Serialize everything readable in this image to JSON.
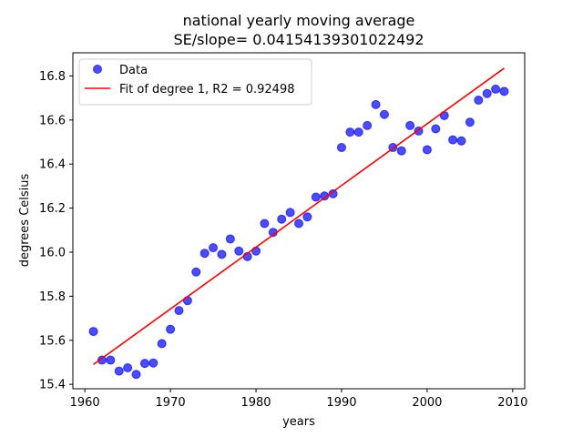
{
  "chart_data": {
    "type": "scatter",
    "title": "national yearly moving average",
    "subtitle": "SE/slope= 0.04154139301022492",
    "xlabel": "years",
    "ylabel": "degrees Celsius",
    "xlim": [
      1958.6,
      2011.4
    ],
    "ylim": [
      15.38,
      16.905
    ],
    "xticks": [
      1960,
      1970,
      1980,
      1990,
      2000,
      2010
    ],
    "yticks": [
      15.4,
      15.6,
      15.8,
      16.0,
      16.2,
      16.4,
      16.6,
      16.8
    ],
    "xtick_labels": [
      "1960",
      "1970",
      "1980",
      "1990",
      "2000",
      "2010"
    ],
    "ytick_labels": [
      "15.4",
      "15.6",
      "15.8",
      "16.0",
      "16.2",
      "16.4",
      "16.6",
      "16.8"
    ],
    "grid": false,
    "legend_position": "top-left",
    "series": [
      {
        "name": "Data",
        "kind": "scatter",
        "color": "#0000ff",
        "x": [
          1961,
          1962,
          1963,
          1964,
          1965,
          1966,
          1967,
          1968,
          1969,
          1970,
          1971,
          1972,
          1973,
          1974,
          1975,
          1976,
          1977,
          1978,
          1979,
          1980,
          1981,
          1982,
          1983,
          1984,
          1985,
          1986,
          1987,
          1988,
          1989,
          1990,
          1991,
          1992,
          1993,
          1994,
          1995,
          1996,
          1997,
          1998,
          1999,
          2000,
          2001,
          2002,
          2003,
          2004,
          2005,
          2006,
          2007,
          2008,
          2009
        ],
        "y": [
          15.64,
          15.51,
          15.51,
          15.46,
          15.475,
          15.445,
          15.495,
          15.497,
          15.585,
          15.65,
          15.735,
          15.78,
          15.91,
          15.995,
          16.02,
          15.99,
          16.06,
          16.005,
          15.98,
          16.005,
          16.13,
          16.09,
          16.15,
          16.18,
          16.13,
          16.16,
          16.25,
          16.255,
          16.265,
          16.475,
          16.545,
          16.545,
          16.575,
          16.67,
          16.625,
          16.475,
          16.46,
          16.575,
          16.55,
          16.465,
          16.56,
          16.62,
          16.51,
          16.505,
          16.59,
          16.69,
          16.72,
          16.74,
          16.73
        ]
      },
      {
        "name": "Fit of degree 1, R2 = 0.92498",
        "kind": "line",
        "color": "#ff0000",
        "x": [
          1961,
          2009
        ],
        "y": [
          15.49,
          16.835
        ]
      }
    ]
  }
}
